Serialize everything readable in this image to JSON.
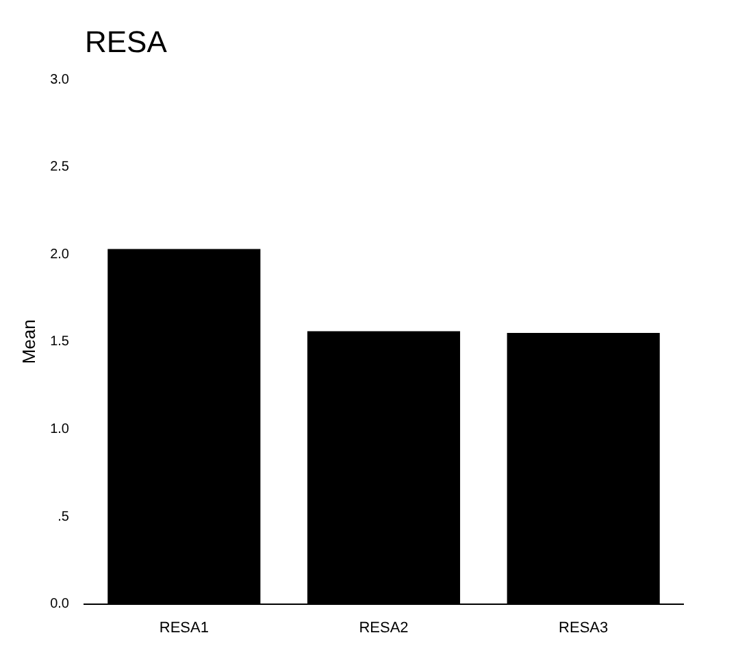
{
  "chart_data": {
    "type": "bar",
    "title": "RESA",
    "ylabel": "Mean",
    "categories": [
      "RESA1",
      "RESA2",
      "RESA3"
    ],
    "values": [
      2.03,
      1.56,
      1.55
    ],
    "color": "#000000",
    "ylim": [
      0,
      3
    ],
    "yticks": [
      {
        "value": 0,
        "label": "0.0"
      },
      {
        "value": 0.5,
        "label": ".5"
      },
      {
        "value": 1,
        "label": "1.0"
      },
      {
        "value": 1.5,
        "label": "1.5"
      },
      {
        "value": 2,
        "label": "2.0"
      },
      {
        "value": 2.5,
        "label": "2.5"
      },
      {
        "value": 3,
        "label": "3.0"
      }
    ],
    "grid": false,
    "legend": false
  }
}
